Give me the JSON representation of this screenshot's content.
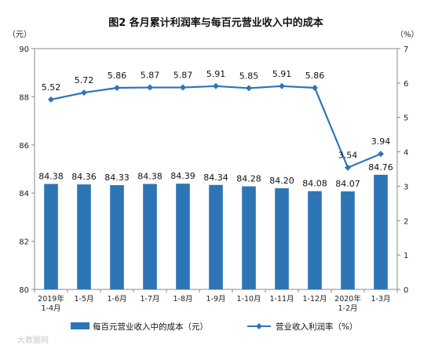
{
  "chart_data": {
    "type": "bar",
    "title": "图2  各月累计利润率与每百元营业收入中的成本",
    "left_unit": "（元）",
    "right_unit": "（%）",
    "left_axis": {
      "min": 80,
      "max": 90,
      "ticks": [
        80,
        82,
        84,
        86,
        88,
        90
      ]
    },
    "right_axis": {
      "min": 0,
      "max": 7,
      "ticks": [
        0,
        1,
        2,
        3,
        4,
        5,
        6,
        7
      ]
    },
    "categories": [
      [
        "2019年",
        "1-4月"
      ],
      [
        "1-5月"
      ],
      [
        "1-6月"
      ],
      [
        "1-7月"
      ],
      [
        "1-8月"
      ],
      [
        "1-9月"
      ],
      [
        "1-10月"
      ],
      [
        "1-11月"
      ],
      [
        "1-12月"
      ],
      [
        "2020年",
        "1-2月"
      ],
      [
        "1-3月"
      ]
    ],
    "series": [
      {
        "name": "每百元营业收入中的成本（元）",
        "type": "bar",
        "axis": "left",
        "color": "#2e75b6",
        "values": [
          84.38,
          84.36,
          84.33,
          84.38,
          84.39,
          84.34,
          84.28,
          84.2,
          84.08,
          84.07,
          84.76
        ],
        "labels": [
          "84.38",
          "84.36",
          "84.33",
          "84.38",
          "84.39",
          "84.34",
          "84.28",
          "84.20",
          "84.08",
          "84.07",
          "84.76"
        ]
      },
      {
        "name": "营业收入利润率（%）",
        "type": "line",
        "axis": "right",
        "color": "#2e75b6",
        "values": [
          5.52,
          5.72,
          5.86,
          5.87,
          5.87,
          5.91,
          5.85,
          5.91,
          5.86,
          3.54,
          3.94
        ],
        "labels": [
          "5.52",
          "5.72",
          "5.86",
          "5.87",
          "5.87",
          "5.91",
          "5.85",
          "5.91",
          "5.86",
          "3.54",
          "3.94"
        ]
      }
    ],
    "legend_position": "bottom",
    "grid": false
  },
  "watermark": "大数据网"
}
